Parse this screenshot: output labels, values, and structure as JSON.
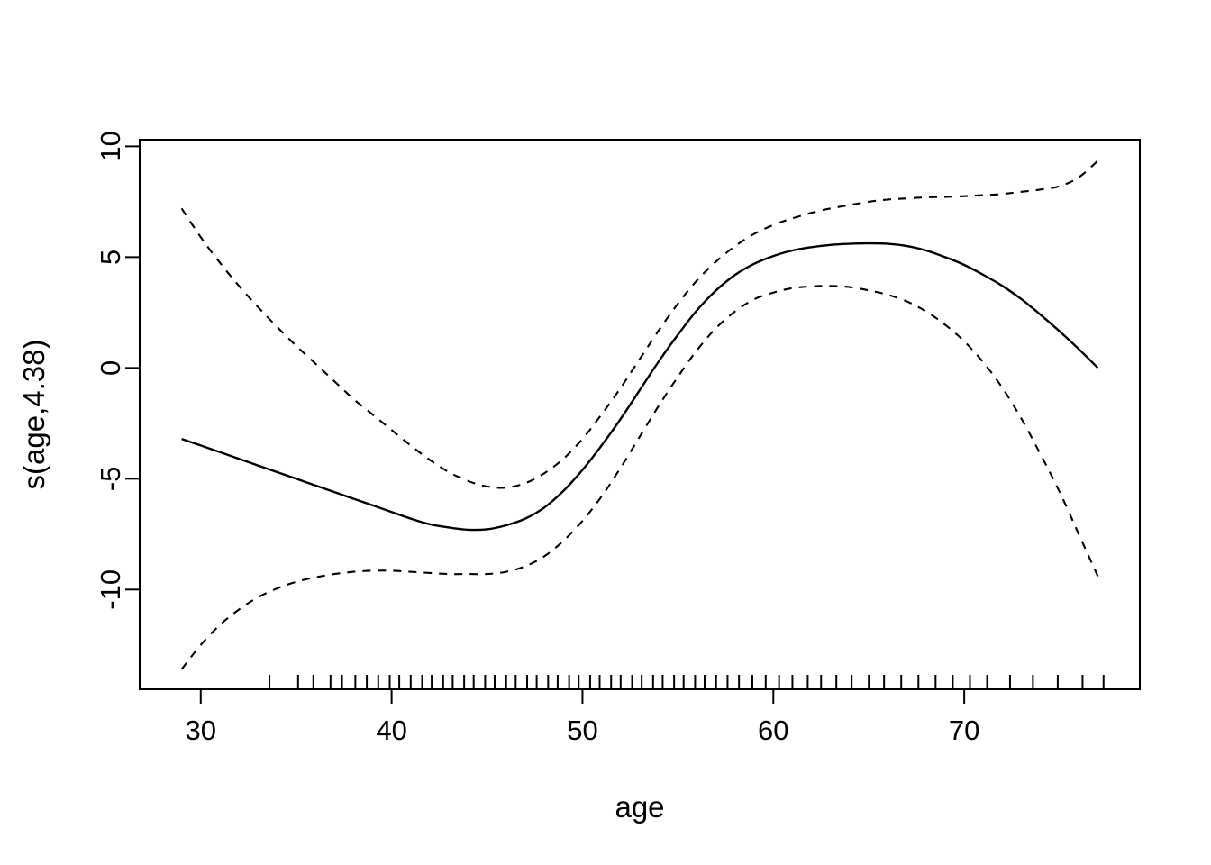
{
  "figure": {
    "background_color": "#ffffff",
    "line_color": "#000000"
  },
  "chart_data": {
    "type": "line",
    "title": "",
    "xlabel": "age",
    "ylabel": "s(age,4.38)",
    "xlim": [
      26.8,
      79.2
    ],
    "ylim": [
      -14.5,
      10.3
    ],
    "x_ticks": [
      30,
      40,
      50,
      60,
      70
    ],
    "y_ticks": [
      -10,
      -5,
      0,
      5,
      10
    ],
    "grid": false,
    "legend": "none",
    "series": [
      {
        "name": "fit",
        "style": "solid",
        "x": [
          29,
          30,
          31,
          32,
          33,
          34,
          35,
          36,
          37,
          38,
          39,
          40,
          41,
          42,
          43,
          44,
          45,
          46,
          47,
          48,
          49,
          50,
          51,
          52,
          53,
          54,
          55,
          56,
          57,
          58,
          59,
          60,
          61,
          62,
          63,
          64,
          65,
          66,
          67,
          68,
          69,
          70,
          71,
          72,
          73,
          74,
          75,
          76,
          77
        ],
        "y": [
          -3.2,
          -3.5,
          -3.8,
          -4.1,
          -4.4,
          -4.7,
          -5.0,
          -5.3,
          -5.6,
          -5.9,
          -6.2,
          -6.5,
          -6.8,
          -7.05,
          -7.2,
          -7.3,
          -7.28,
          -7.1,
          -6.8,
          -6.3,
          -5.55,
          -4.6,
          -3.5,
          -2.3,
          -1.0,
          0.3,
          1.5,
          2.6,
          3.5,
          4.2,
          4.7,
          5.05,
          5.3,
          5.45,
          5.55,
          5.6,
          5.62,
          5.6,
          5.5,
          5.3,
          5.0,
          4.65,
          4.2,
          3.7,
          3.1,
          2.4,
          1.65,
          0.85,
          0.0
        ]
      },
      {
        "name": "upper-ci",
        "style": "dashed",
        "x": [
          29,
          30,
          31,
          32,
          33,
          34,
          35,
          36,
          37,
          38,
          39,
          40,
          41,
          42,
          43,
          44,
          45,
          46,
          47,
          48,
          49,
          50,
          51,
          52,
          53,
          54,
          55,
          56,
          57,
          58,
          59,
          60,
          61,
          62,
          63,
          64,
          65,
          66,
          67,
          68,
          69,
          70,
          71,
          72,
          73,
          74,
          75,
          76,
          77
        ],
        "y": [
          7.2,
          5.9,
          4.75,
          3.7,
          2.75,
          1.85,
          1.0,
          0.2,
          -0.6,
          -1.4,
          -2.1,
          -2.8,
          -3.5,
          -4.15,
          -4.7,
          -5.1,
          -5.35,
          -5.4,
          -5.2,
          -4.75,
          -4.1,
          -3.2,
          -2.1,
          -0.9,
          0.4,
          1.7,
          2.9,
          3.95,
          4.8,
          5.5,
          6.05,
          6.45,
          6.75,
          7.0,
          7.2,
          7.35,
          7.5,
          7.6,
          7.65,
          7.7,
          7.72,
          7.75,
          7.8,
          7.85,
          7.95,
          8.05,
          8.2,
          8.6,
          9.35
        ]
      },
      {
        "name": "lower-ci",
        "style": "dashed",
        "x": [
          29,
          30,
          31,
          32,
          33,
          34,
          35,
          36,
          37,
          38,
          39,
          40,
          41,
          42,
          43,
          44,
          45,
          46,
          47,
          48,
          49,
          50,
          51,
          52,
          53,
          54,
          55,
          56,
          57,
          58,
          59,
          60,
          61,
          62,
          63,
          64,
          65,
          66,
          67,
          68,
          69,
          70,
          71,
          72,
          73,
          74,
          75,
          76,
          77
        ],
        "y": [
          -13.6,
          -12.5,
          -11.6,
          -10.9,
          -10.35,
          -9.95,
          -9.65,
          -9.45,
          -9.3,
          -9.2,
          -9.15,
          -9.15,
          -9.2,
          -9.25,
          -9.3,
          -9.3,
          -9.3,
          -9.2,
          -8.95,
          -8.5,
          -7.8,
          -6.9,
          -5.8,
          -4.5,
          -3.1,
          -1.7,
          -0.4,
          0.8,
          1.8,
          2.55,
          3.1,
          3.4,
          3.6,
          3.68,
          3.7,
          3.65,
          3.5,
          3.3,
          3.0,
          2.55,
          1.95,
          1.2,
          0.25,
          -0.9,
          -2.3,
          -3.9,
          -5.6,
          -7.5,
          -9.4
        ]
      }
    ],
    "rug_x": [
      33.6,
      35.1,
      35.9,
      36.8,
      37.4,
      38.1,
      38.7,
      39.3,
      39.9,
      40.4,
      41.0,
      41.6,
      42.1,
      42.7,
      43.2,
      43.8,
      44.3,
      44.9,
      45.4,
      46.0,
      46.5,
      47.1,
      47.6,
      48.2,
      48.7,
      49.3,
      49.8,
      50.4,
      50.9,
      51.5,
      52.0,
      52.6,
      53.1,
      53.7,
      54.2,
      54.8,
      55.3,
      55.9,
      56.4,
      57.0,
      57.6,
      58.2,
      58.9,
      59.6,
      60.3,
      61.0,
      61.8,
      62.5,
      63.3,
      64.1,
      65.0,
      65.8,
      66.7,
      67.6,
      68.5,
      69.4,
      70.3,
      71.2,
      72.4,
      73.6,
      74.9,
      76.2,
      77.3
    ]
  }
}
